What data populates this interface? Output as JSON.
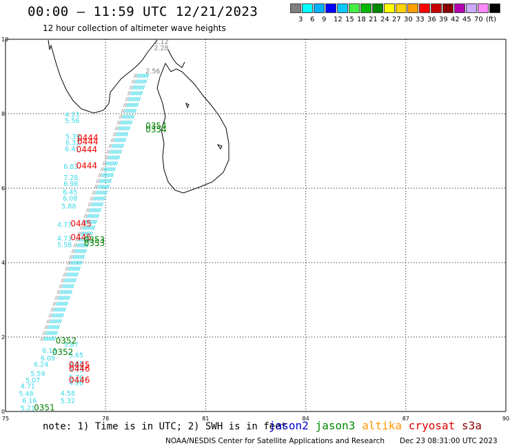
{
  "title": "00:00 – 11:59 UTC 12/21/2023",
  "subtitle": "12 hour collection of altimeter wave heights",
  "scale": {
    "colors": [
      "#808080",
      "#00ffff",
      "#00b0ff",
      "#0000ff",
      "#00c8ff",
      "#44ee44",
      "#00b800",
      "#008800",
      "#ffff00",
      "#ffd200",
      "#ffa000",
      "#ff0000",
      "#c80000",
      "#880000",
      "#b000b0",
      "#ccaaff",
      "#ff88ff",
      "#000000"
    ],
    "labels": [
      "3",
      "6",
      "9",
      "12",
      "15",
      "18",
      "21",
      "24",
      "27",
      "30",
      "33",
      "36",
      "39",
      "42",
      "45",
      "70",
      "(ft)"
    ]
  },
  "axes": {
    "x_ticks": [
      "75",
      "78",
      "81",
      "84",
      "87",
      "90"
    ],
    "y_ticks": [
      "0",
      "2",
      "4",
      "6",
      "8",
      "10"
    ]
  },
  "chart_data": {
    "type": "scatter",
    "xlim": [
      75,
      90
    ],
    "ylim": [
      0,
      10
    ],
    "grid": true,
    "colors": {
      "gray": "#808080",
      "cyan": "#38d8e8",
      "red": "#ee0000",
      "green": "#008000"
    },
    "wave_labels": [
      {
        "lon": 76.78,
        "lat": 7.92,
        "text": "4.23",
        "c": "cyan"
      },
      {
        "lon": 76.78,
        "lat": 7.75,
        "text": "5.56",
        "c": "cyan"
      },
      {
        "lon": 76.8,
        "lat": 7.32,
        "text": "5.39",
        "c": "cyan"
      },
      {
        "lon": 76.8,
        "lat": 7.16,
        "text": "6.32",
        "c": "cyan"
      },
      {
        "lon": 76.78,
        "lat": 6.99,
        "text": "6.41",
        "c": "cyan"
      },
      {
        "lon": 76.74,
        "lat": 6.52,
        "text": "6.83",
        "c": "cyan"
      },
      {
        "lon": 76.74,
        "lat": 6.22,
        "text": "7.28",
        "c": "cyan"
      },
      {
        "lon": 76.74,
        "lat": 6.06,
        "text": "6.98",
        "c": "cyan"
      },
      {
        "lon": 76.72,
        "lat": 5.83,
        "text": "6.45",
        "c": "cyan"
      },
      {
        "lon": 76.72,
        "lat": 5.67,
        "text": "6.08",
        "c": "cyan"
      },
      {
        "lon": 76.68,
        "lat": 5.45,
        "text": "5.88",
        "c": "cyan"
      },
      {
        "lon": 76.55,
        "lat": 4.95,
        "text": "4.77",
        "c": "cyan"
      },
      {
        "lon": 76.55,
        "lat": 4.58,
        "text": "4.73",
        "c": "cyan"
      },
      {
        "lon": 76.55,
        "lat": 4.42,
        "text": "5.58",
        "c": "cyan"
      },
      {
        "lon": 76.1,
        "lat": 1.57,
        "text": "6.13",
        "c": "cyan"
      },
      {
        "lon": 76.05,
        "lat": 1.37,
        "text": "6.09",
        "c": "cyan"
      },
      {
        "lon": 75.85,
        "lat": 1.2,
        "text": "6.24",
        "c": "cyan"
      },
      {
        "lon": 75.75,
        "lat": 0.95,
        "text": "5.59",
        "c": "cyan"
      },
      {
        "lon": 75.6,
        "lat": 0.78,
        "text": "5.07",
        "c": "cyan"
      },
      {
        "lon": 75.45,
        "lat": 0.62,
        "text": "4.71",
        "c": "cyan"
      },
      {
        "lon": 75.4,
        "lat": 0.42,
        "text": "5.48",
        "c": "cyan"
      },
      {
        "lon": 75.5,
        "lat": 0.23,
        "text": "6.16",
        "c": "cyan"
      },
      {
        "lon": 75.45,
        "lat": 0.03,
        "text": "5.21",
        "c": "cyan"
      },
      {
        "lon": 76.75,
        "lat": 1.73,
        "text": "5.87",
        "c": "cyan"
      },
      {
        "lon": 76.9,
        "lat": 1.45,
        "text": "5.65",
        "c": "cyan"
      },
      {
        "lon": 76.9,
        "lat": 1.22,
        "text": "4.65",
        "c": "cyan"
      },
      {
        "lon": 76.9,
        "lat": 1.06,
        "text": "4.73",
        "c": "cyan"
      },
      {
        "lon": 76.9,
        "lat": 0.85,
        "text": "5.76",
        "c": "cyan"
      },
      {
        "lon": 76.9,
        "lat": 0.7,
        "text": "4.96",
        "c": "cyan"
      },
      {
        "lon": 76.65,
        "lat": 0.43,
        "text": "4.58",
        "c": "cyan"
      },
      {
        "lon": 76.65,
        "lat": 0.22,
        "text": "5.32",
        "c": "cyan"
      },
      {
        "lon": 79.45,
        "lat": 9.87,
        "text": "2.12",
        "c": "gray"
      },
      {
        "lon": 79.45,
        "lat": 9.7,
        "text": "2.28",
        "c": "gray"
      },
      {
        "lon": 79.2,
        "lat": 9.08,
        "text": "2.56",
        "c": "gray"
      }
    ],
    "sat_passes": [
      {
        "lon": 77.15,
        "lat": 7.28,
        "text": "0444",
        "c": "red"
      },
      {
        "lon": 77.15,
        "lat": 7.18,
        "text": "0444",
        "c": "red"
      },
      {
        "lon": 77.12,
        "lat": 6.96,
        "text": "0444",
        "c": "red"
      },
      {
        "lon": 77.12,
        "lat": 6.53,
        "text": "0444",
        "c": "red"
      },
      {
        "lon": 76.95,
        "lat": 4.97,
        "text": "0445",
        "c": "red"
      },
      {
        "lon": 76.95,
        "lat": 4.6,
        "text": "0445",
        "c": "red"
      },
      {
        "lon": 76.9,
        "lat": 1.18,
        "text": "0445",
        "c": "red"
      },
      {
        "lon": 76.9,
        "lat": 1.07,
        "text": "0446",
        "c": "red"
      },
      {
        "lon": 76.9,
        "lat": 0.77,
        "text": "0446",
        "c": "red"
      },
      {
        "lon": 79.2,
        "lat": 7.6,
        "text": "0354",
        "c": "green"
      },
      {
        "lon": 79.2,
        "lat": 7.5,
        "text": "0354",
        "c": "green"
      },
      {
        "lon": 77.35,
        "lat": 4.54,
        "text": "0353",
        "c": "green"
      },
      {
        "lon": 77.35,
        "lat": 4.44,
        "text": "0353",
        "c": "green"
      },
      {
        "lon": 76.5,
        "lat": 1.82,
        "text": "0352",
        "c": "green"
      },
      {
        "lon": 76.4,
        "lat": 1.52,
        "text": "0352",
        "c": "green"
      },
      {
        "lon": 75.85,
        "lat": 0.03,
        "text": "0351",
        "c": "green"
      }
    ]
  },
  "note": "note: 1) Time is in UTC; 2) SWH is in feet",
  "satellites": [
    {
      "name": "jason2",
      "color": "#0000cc"
    },
    {
      "name": "jason3",
      "color": "#008800"
    },
    {
      "name": "altika",
      "color": "#ff9900"
    },
    {
      "name": "cryosat",
      "color": "#dd0000"
    },
    {
      "name": "s3a",
      "color": "#880000"
    }
  ],
  "footer": "NOAA/NESDIS Center for Satellite Applications and Research",
  "footer_date": "Dec 23 08:31:00 UTC 2023"
}
